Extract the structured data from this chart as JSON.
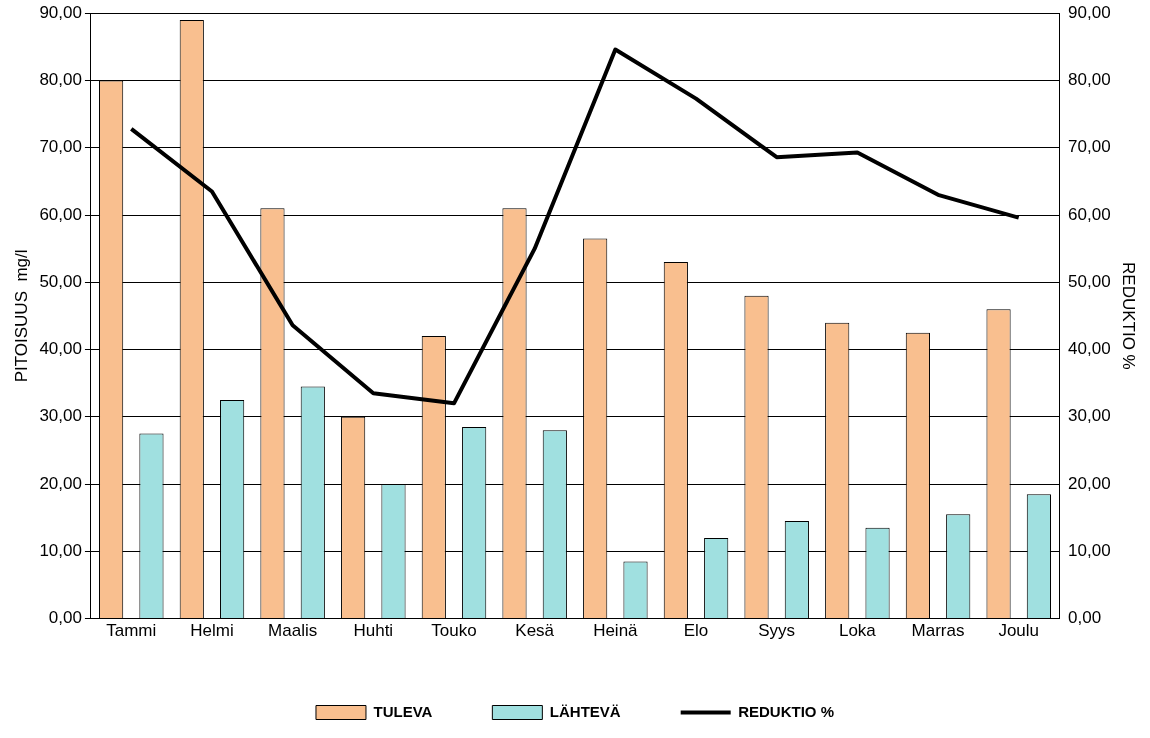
{
  "chart_data": {
    "type": "bar",
    "ylabel": "PITOISUUS  mg/l",
    "y2label": "REDUKTIO %",
    "categories": [
      "Tammi",
      "Helmi",
      "Maalis",
      "Huhti",
      "Touko",
      "Kesä",
      "Heinä",
      "Elo",
      "Syys",
      "Loka",
      "Marras",
      "Joulu"
    ],
    "series": [
      {
        "name": "TULEVA",
        "color": "#f9bf8f",
        "values": [
          80,
          89,
          61,
          30,
          42,
          61,
          56.5,
          53,
          48,
          44,
          42.5,
          46
        ]
      },
      {
        "name": "LÄHTEVÄ",
        "color": "#a0e0e0",
        "values": [
          27.5,
          32.5,
          34.5,
          20,
          28.5,
          28,
          8.5,
          12,
          14.5,
          13.5,
          15.5,
          18.5
        ]
      },
      {
        "name": "REDUKTIO %",
        "type": "line",
        "axis": "y2",
        "color": "#000000",
        "values": [
          72.8,
          63.5,
          43.6,
          33.5,
          32,
          55,
          84.6,
          77.3,
          68.6,
          69.3,
          63,
          59.6
        ]
      }
    ],
    "ylim": [
      0,
      90
    ],
    "yticks": [
      {
        "value": 0,
        "label": "0,00"
      },
      {
        "value": 10,
        "label": "10,00"
      },
      {
        "value": 20,
        "label": "20,00"
      },
      {
        "value": 30,
        "label": "30,00"
      },
      {
        "value": 40,
        "label": "40,00"
      },
      {
        "value": 50,
        "label": "50,00"
      },
      {
        "value": 60,
        "label": "60,00"
      },
      {
        "value": 70,
        "label": "70,00"
      },
      {
        "value": 80,
        "label": "80,00"
      },
      {
        "value": 90,
        "label": "90,00"
      }
    ],
    "y2lim": [
      0,
      90
    ],
    "y2ticks": [
      {
        "value": 0,
        "label": "0,00"
      },
      {
        "value": 10,
        "label": "10,00"
      },
      {
        "value": 20,
        "label": "20,00"
      },
      {
        "value": 30,
        "label": "30,00"
      },
      {
        "value": 40,
        "label": "40,00"
      },
      {
        "value": 50,
        "label": "50,00"
      },
      {
        "value": 60,
        "label": "60,00"
      },
      {
        "value": 70,
        "label": "70,00"
      },
      {
        "value": 80,
        "label": "80,00"
      },
      {
        "value": 90,
        "label": "90,00"
      }
    ],
    "grid": "y",
    "legend": "bottom",
    "marker": "none"
  }
}
